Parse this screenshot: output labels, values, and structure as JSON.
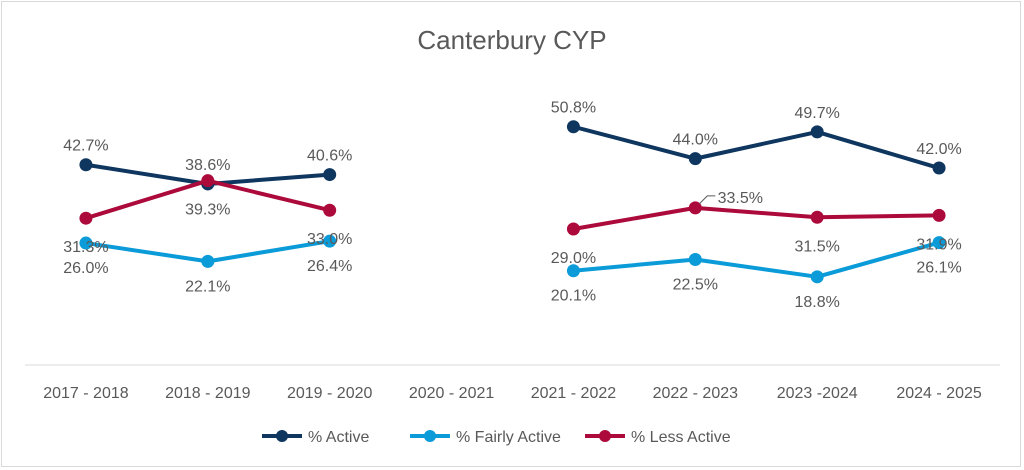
{
  "chart_data": {
    "type": "line",
    "title": "Canterbury CYP",
    "xlabel": "",
    "ylabel": "",
    "ylim": [
      0,
      60
    ],
    "grid": false,
    "legend_position": "bottom",
    "categories": [
      "2017 - 2018",
      "2018 - 2019",
      "2019 - 2020",
      "2020 - 2021",
      "2021 - 2022",
      "2022 - 2023",
      "2023 -2024",
      "2024 - 2025"
    ],
    "series": [
      {
        "name": "% Active",
        "color": "#0e365f",
        "values": [
          42.7,
          38.6,
          40.6,
          null,
          50.8,
          44.0,
          49.7,
          42.0
        ],
        "labels": [
          "42.7%",
          "38.6%",
          "40.6%",
          null,
          "50.8%",
          "44.0%",
          "49.7%",
          "42.0%"
        ]
      },
      {
        "name": "% Fairly Active",
        "color": "#0a9bd8",
        "values": [
          26.0,
          22.1,
          26.4,
          null,
          20.1,
          22.5,
          18.8,
          26.1
        ],
        "labels": [
          "26.0%",
          "22.1%",
          "26.4%",
          null,
          "20.1%",
          "22.5%",
          "18.8%",
          "26.1%"
        ]
      },
      {
        "name": "% Less Active",
        "color": "#ad0a3c",
        "values": [
          31.3,
          39.3,
          33.0,
          null,
          29.0,
          33.5,
          31.5,
          31.9
        ],
        "labels": [
          "31.3%",
          "39.3%",
          "33.0%",
          null,
          "29.0%",
          "33.5%",
          "31.5%",
          "31.9%"
        ]
      }
    ]
  }
}
